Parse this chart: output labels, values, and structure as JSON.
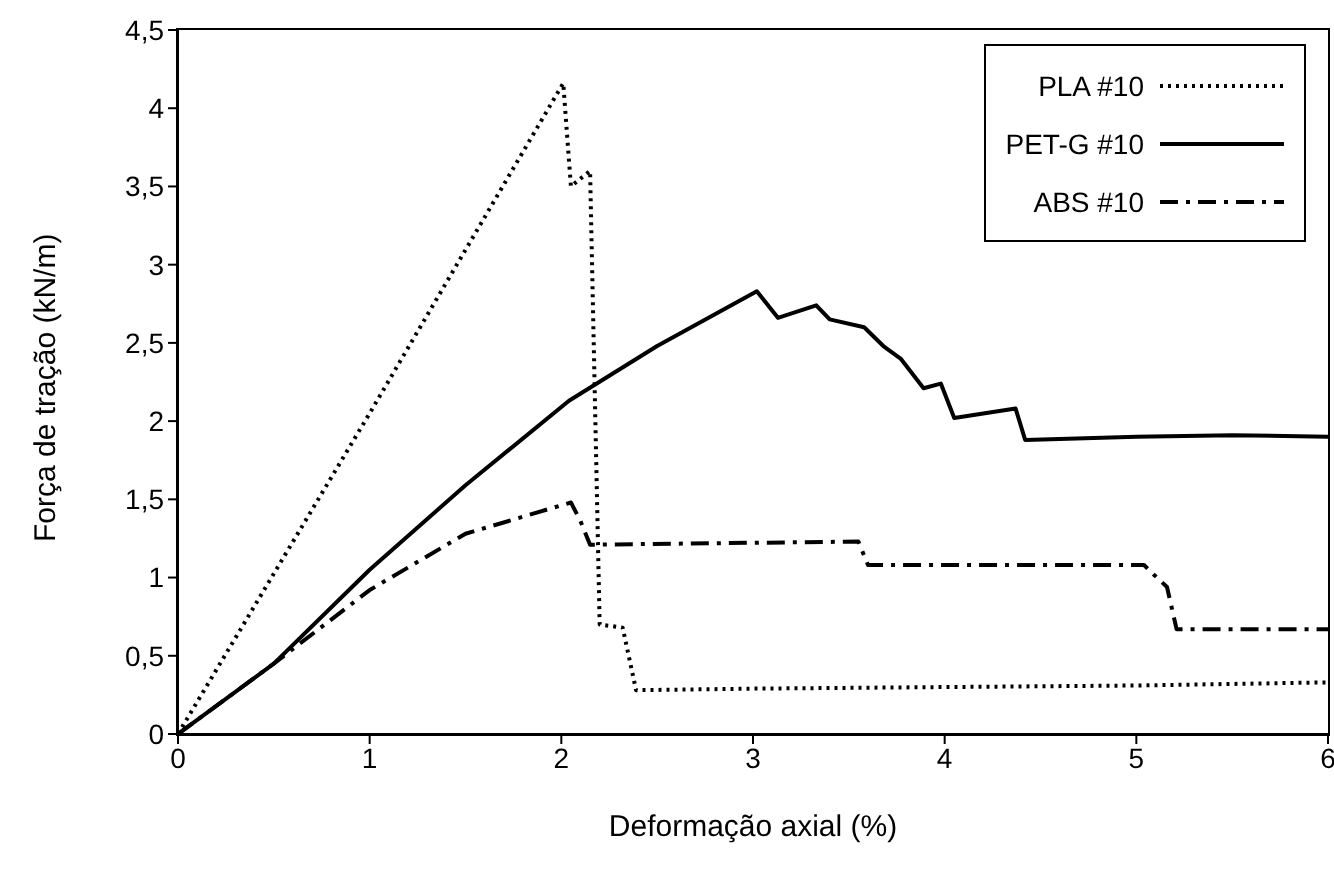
{
  "chart_data": {
    "type": "line",
    "xlabel": "Deformação axial (%)",
    "ylabel": "Força de tração (kN/m)",
    "xlim": [
      0,
      6
    ],
    "xticks": [
      0,
      1,
      2,
      3,
      4,
      5,
      6
    ],
    "ylim": [
      0,
      4.5
    ],
    "yticks": [
      0,
      {
        "value": 0.5,
        "label": "0,5"
      },
      1,
      {
        "value": 1.5,
        "label": "1,5"
      },
      2,
      {
        "value": 2.5,
        "label": "2,5"
      },
      3,
      {
        "value": 3.5,
        "label": "3,5"
      },
      4,
      {
        "value": 4.5,
        "label": "4,5"
      }
    ],
    "legend": "top right",
    "marker": "none",
    "series": [
      {
        "name": "PLA #10",
        "color": "#000000",
        "line_style": "dotted",
        "x": [
          0,
          1,
          2.01,
          2.05,
          2.15,
          2.2,
          2.32,
          2.39,
          3,
          4,
          5,
          6
        ],
        "values": [
          0,
          2.05,
          4.16,
          3.5,
          3.6,
          0.7,
          0.68,
          0.28,
          0.29,
          0.3,
          0.31,
          0.33
        ]
      },
      {
        "name": "PET-G #10",
        "color": "#000000",
        "line_style": "solid",
        "x": [
          0,
          0.5,
          1,
          1.5,
          2.04,
          2.5,
          3.02,
          3.13,
          3.33,
          3.4,
          3.58,
          3.68,
          3.77,
          3.89,
          3.98,
          4.05,
          4.37,
          4.42,
          5,
          5.5,
          6
        ],
        "values": [
          0,
          0.45,
          1.05,
          1.59,
          2.13,
          2.48,
          2.83,
          2.66,
          2.74,
          2.65,
          2.6,
          2.48,
          2.4,
          2.21,
          2.24,
          2.02,
          2.08,
          1.88,
          1.9,
          1.91,
          1.9
        ]
      },
      {
        "name": "ABS #10",
        "color": "#000000",
        "line_style": "dashdot",
        "x": [
          0,
          0.5,
          1,
          1.5,
          2.05,
          2.1,
          2.15,
          3.55,
          3.6,
          5.04,
          5.09,
          5.16,
          5.21,
          6
        ],
        "values": [
          0,
          0.45,
          0.92,
          1.28,
          1.48,
          1.36,
          1.21,
          1.23,
          1.08,
          1.08,
          1.02,
          0.94,
          0.67,
          0.67
        ]
      }
    ]
  }
}
